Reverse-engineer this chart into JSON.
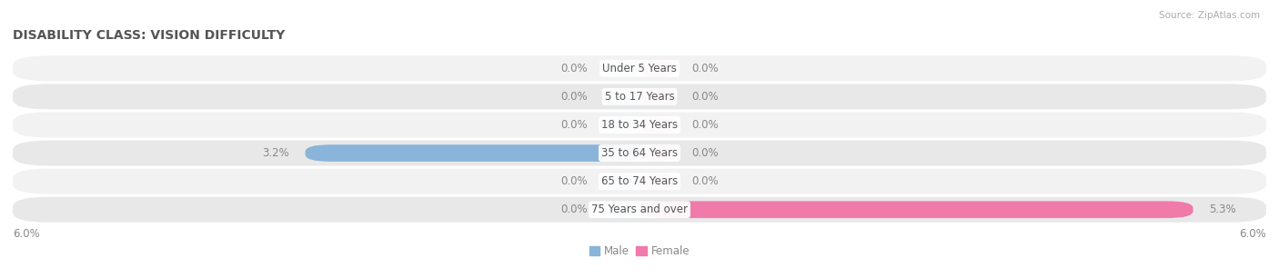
{
  "title": "DISABILITY CLASS: VISION DIFFICULTY",
  "source": "Source: ZipAtlas.com",
  "categories": [
    "Under 5 Years",
    "5 to 17 Years",
    "18 to 34 Years",
    "35 to 64 Years",
    "65 to 74 Years",
    "75 Years and over"
  ],
  "male_values": [
    0.0,
    0.0,
    0.0,
    3.2,
    0.0,
    0.0
  ],
  "female_values": [
    0.0,
    0.0,
    0.0,
    0.0,
    0.0,
    5.3
  ],
  "max_value": 6.0,
  "male_color": "#8ab4d9",
  "male_stub_color": "#b8d0e8",
  "female_color": "#f07aaa",
  "female_stub_color": "#f5adc8",
  "male_label": "Male",
  "female_label": "Female",
  "row_colors_odd": "#f2f2f2",
  "row_colors_even": "#e8e8e8",
  "label_color": "#555555",
  "value_color": "#888888",
  "axis_label": "6.0%",
  "title_fontsize": 10,
  "cat_fontsize": 8.5,
  "val_fontsize": 8.5,
  "legend_fontsize": 8.5,
  "source_fontsize": 7.5,
  "stub_size": 0.35
}
